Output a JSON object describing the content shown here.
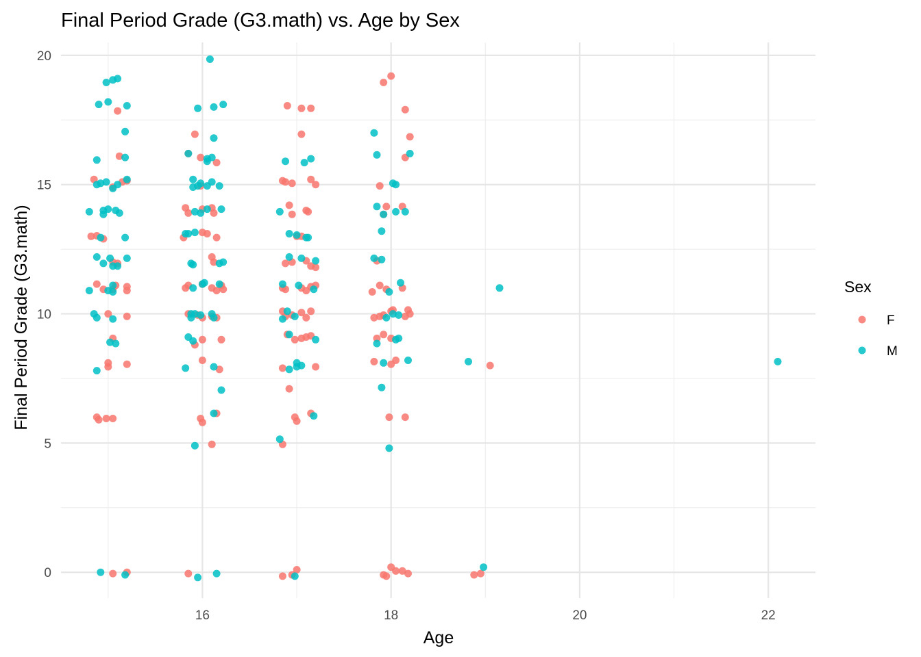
{
  "chart_data": {
    "type": "scatter",
    "title": "Final Period Grade (G3.math) vs. Age by Sex",
    "xlabel": "Age",
    "ylabel": "Final Period Grade (G3.math)",
    "xlim": [
      14.5,
      22.5
    ],
    "ylim": [
      -1,
      20.5
    ],
    "x_ticks": [
      16,
      18,
      20,
      22
    ],
    "y_ticks": [
      0,
      5,
      10,
      15,
      20
    ],
    "grid": true,
    "legend": {
      "title": "Sex",
      "placement": "right",
      "entries": [
        {
          "label": "F",
          "color": "#F8766D"
        },
        {
          "label": "M",
          "color": "#00BFC4"
        }
      ]
    },
    "series": [
      {
        "name": "F",
        "color": "#F8766D",
        "points": [
          [
            15.1,
            17.85
          ],
          [
            15.12,
            16.1
          ],
          [
            14.85,
            15.2
          ],
          [
            15.15,
            15.1
          ],
          [
            15.2,
            15.15
          ],
          [
            15.05,
            14.9
          ],
          [
            14.82,
            13.0
          ],
          [
            14.88,
            13.02
          ],
          [
            14.95,
            12.9
          ],
          [
            15.05,
            12.0
          ],
          [
            15.1,
            11.95
          ],
          [
            14.88,
            11.15
          ],
          [
            14.95,
            10.95
          ],
          [
            15.08,
            11.1
          ],
          [
            15.2,
            11.05
          ],
          [
            15.05,
            10.95
          ],
          [
            15.2,
            10.9
          ],
          [
            15.0,
            10.0
          ],
          [
            15.2,
            9.9
          ],
          [
            15.05,
            9.05
          ],
          [
            15.0,
            8.1
          ],
          [
            15.0,
            7.95
          ],
          [
            15.2,
            8.05
          ],
          [
            14.88,
            6.0
          ],
          [
            14.9,
            5.9
          ],
          [
            14.98,
            5.95
          ],
          [
            15.05,
            5.95
          ],
          [
            15.05,
            -0.05
          ],
          [
            15.2,
            0.0
          ],
          [
            15.92,
            16.95
          ],
          [
            15.85,
            16.2
          ],
          [
            15.98,
            16.05
          ],
          [
            16.15,
            15.85
          ],
          [
            15.98,
            14.95
          ],
          [
            15.82,
            14.1
          ],
          [
            15.85,
            13.9
          ],
          [
            16.0,
            14.05
          ],
          [
            16.1,
            14.1
          ],
          [
            16.12,
            13.9
          ],
          [
            16.0,
            13.15
          ],
          [
            16.05,
            13.1
          ],
          [
            15.8,
            12.95
          ],
          [
            16.15,
            12.95
          ],
          [
            16.1,
            12.2
          ],
          [
            16.12,
            12.0
          ],
          [
            15.82,
            11.0
          ],
          [
            15.85,
            11.1
          ],
          [
            16.0,
            11.15
          ],
          [
            16.1,
            11.0
          ],
          [
            16.15,
            10.9
          ],
          [
            16.2,
            11.1
          ],
          [
            16.22,
            10.95
          ],
          [
            15.85,
            10.0
          ],
          [
            15.95,
            9.95
          ],
          [
            16.0,
            9.85
          ],
          [
            16.1,
            9.9
          ],
          [
            16.15,
            9.85
          ],
          [
            16.0,
            9.0
          ],
          [
            15.92,
            8.8
          ],
          [
            16.2,
            9.0
          ],
          [
            16.0,
            8.2
          ],
          [
            16.18,
            7.85
          ],
          [
            16.15,
            6.15
          ],
          [
            15.98,
            5.95
          ],
          [
            16.0,
            5.8
          ],
          [
            16.1,
            4.95
          ],
          [
            15.85,
            -0.05
          ],
          [
            16.9,
            18.05
          ],
          [
            17.05,
            17.95
          ],
          [
            17.15,
            17.95
          ],
          [
            17.05,
            16.95
          ],
          [
            16.85,
            15.15
          ],
          [
            16.88,
            15.1
          ],
          [
            16.95,
            15.05
          ],
          [
            17.15,
            15.2
          ],
          [
            17.2,
            15.0
          ],
          [
            16.92,
            14.2
          ],
          [
            16.95,
            13.85
          ],
          [
            17.1,
            14.0
          ],
          [
            17.12,
            13.95
          ],
          [
            17.0,
            13.0
          ],
          [
            17.05,
            13.0
          ],
          [
            16.88,
            11.95
          ],
          [
            16.95,
            12.0
          ],
          [
            17.1,
            12.05
          ],
          [
            17.15,
            11.85
          ],
          [
            17.2,
            11.8
          ],
          [
            16.85,
            11.0
          ],
          [
            16.88,
            10.95
          ],
          [
            17.05,
            11.0
          ],
          [
            17.1,
            10.9
          ],
          [
            17.15,
            11.05
          ],
          [
            17.2,
            11.1
          ],
          [
            16.85,
            10.1
          ],
          [
            16.88,
            9.9
          ],
          [
            16.95,
            9.95
          ],
          [
            17.05,
            10.05
          ],
          [
            17.1,
            9.85
          ],
          [
            17.15,
            10.1
          ],
          [
            16.9,
            9.2
          ],
          [
            16.98,
            9.0
          ],
          [
            17.05,
            9.05
          ],
          [
            17.1,
            9.1
          ],
          [
            17.15,
            9.15
          ],
          [
            16.85,
            7.9
          ],
          [
            17.2,
            7.95
          ],
          [
            16.92,
            7.1
          ],
          [
            16.98,
            6.0
          ],
          [
            17.0,
            5.85
          ],
          [
            17.15,
            6.15
          ],
          [
            16.85,
            4.95
          ],
          [
            16.85,
            -0.15
          ],
          [
            16.95,
            -0.1
          ],
          [
            17.0,
            0.1
          ],
          [
            18.0,
            19.2
          ],
          [
            17.92,
            18.95
          ],
          [
            18.15,
            17.9
          ],
          [
            18.2,
            16.85
          ],
          [
            18.15,
            16.05
          ],
          [
            17.88,
            14.95
          ],
          [
            17.92,
            13.85
          ],
          [
            17.95,
            14.15
          ],
          [
            18.12,
            14.15
          ],
          [
            17.85,
            12.05
          ],
          [
            17.8,
            10.85
          ],
          [
            17.88,
            11.1
          ],
          [
            17.95,
            10.95
          ],
          [
            18.12,
            11.0
          ],
          [
            17.82,
            9.85
          ],
          [
            17.88,
            9.9
          ],
          [
            17.92,
            9.95
          ],
          [
            18.0,
            10.1
          ],
          [
            18.02,
            10.15
          ],
          [
            18.15,
            9.9
          ],
          [
            18.18,
            10.15
          ],
          [
            18.2,
            10.0
          ],
          [
            17.85,
            9.05
          ],
          [
            17.92,
            9.2
          ],
          [
            18.0,
            9.05
          ],
          [
            17.82,
            8.15
          ],
          [
            18.0,
            8.05
          ],
          [
            18.05,
            8.2
          ],
          [
            17.98,
            6.0
          ],
          [
            18.15,
            6.0
          ],
          [
            17.92,
            -0.1
          ],
          [
            17.95,
            -0.15
          ],
          [
            18.0,
            0.2
          ],
          [
            18.05,
            0.05
          ],
          [
            18.12,
            0.05
          ],
          [
            18.18,
            -0.05
          ],
          [
            19.05,
            8.0
          ],
          [
            18.88,
            -0.1
          ],
          [
            18.95,
            -0.05
          ]
        ]
      },
      {
        "name": "M",
        "color": "#00BFC4",
        "points": [
          [
            15.1,
            19.1
          ],
          [
            15.05,
            19.05
          ],
          [
            14.98,
            18.95
          ],
          [
            15.0,
            18.2
          ],
          [
            14.9,
            18.1
          ],
          [
            15.2,
            18.05
          ],
          [
            15.18,
            17.05
          ],
          [
            14.88,
            15.95
          ],
          [
            15.18,
            16.05
          ],
          [
            14.88,
            15.0
          ],
          [
            14.92,
            15.05
          ],
          [
            14.98,
            15.1
          ],
          [
            15.05,
            14.85
          ],
          [
            15.1,
            15.0
          ],
          [
            15.2,
            15.2
          ],
          [
            14.8,
            13.95
          ],
          [
            14.95,
            14.0
          ],
          [
            15.0,
            14.05
          ],
          [
            15.08,
            14.0
          ],
          [
            15.12,
            13.9
          ],
          [
            14.95,
            13.85
          ],
          [
            14.92,
            12.95
          ],
          [
            15.18,
            12.95
          ],
          [
            14.88,
            12.2
          ],
          [
            14.95,
            11.95
          ],
          [
            15.02,
            12.15
          ],
          [
            15.05,
            11.85
          ],
          [
            15.1,
            11.85
          ],
          [
            15.2,
            12.15
          ],
          [
            14.8,
            10.9
          ],
          [
            15.0,
            10.9
          ],
          [
            15.05,
            10.85
          ],
          [
            15.05,
            11.1
          ],
          [
            14.85,
            10.0
          ],
          [
            14.88,
            9.85
          ],
          [
            15.05,
            9.8
          ],
          [
            15.02,
            8.9
          ],
          [
            15.08,
            8.85
          ],
          [
            14.88,
            7.8
          ],
          [
            14.92,
            0.0
          ],
          [
            15.18,
            -0.1
          ],
          [
            16.08,
            19.85
          ],
          [
            15.95,
            17.95
          ],
          [
            16.12,
            18.0
          ],
          [
            16.22,
            18.1
          ],
          [
            16.12,
            16.8
          ],
          [
            15.85,
            16.2
          ],
          [
            16.05,
            16.0
          ],
          [
            16.1,
            16.05
          ],
          [
            16.05,
            15.9
          ],
          [
            15.9,
            15.2
          ],
          [
            15.9,
            14.9
          ],
          [
            15.95,
            14.95
          ],
          [
            15.98,
            15.05
          ],
          [
            16.05,
            14.95
          ],
          [
            16.1,
            15.1
          ],
          [
            16.18,
            14.95
          ],
          [
            15.92,
            13.95
          ],
          [
            15.98,
            13.9
          ],
          [
            16.05,
            14.05
          ],
          [
            16.2,
            14.05
          ],
          [
            15.82,
            13.1
          ],
          [
            15.85,
            13.1
          ],
          [
            15.92,
            13.15
          ],
          [
            15.88,
            11.95
          ],
          [
            15.9,
            11.9
          ],
          [
            16.02,
            11.2
          ],
          [
            16.18,
            11.15
          ],
          [
            16.22,
            12.0
          ],
          [
            16.18,
            11.95
          ],
          [
            15.9,
            11.0
          ],
          [
            16.0,
            11.15
          ],
          [
            15.88,
            10.0
          ],
          [
            15.92,
            10.0
          ],
          [
            15.98,
            9.95
          ],
          [
            16.1,
            10.0
          ],
          [
            16.12,
            9.85
          ],
          [
            15.88,
            9.85
          ],
          [
            15.85,
            9.1
          ],
          [
            15.9,
            8.95
          ],
          [
            15.82,
            7.9
          ],
          [
            16.12,
            7.95
          ],
          [
            16.2,
            7.05
          ],
          [
            16.12,
            6.15
          ],
          [
            15.92,
            4.9
          ],
          [
            15.95,
            -0.2
          ],
          [
            16.15,
            -0.05
          ],
          [
            16.88,
            15.9
          ],
          [
            17.15,
            16.0
          ],
          [
            17.08,
            15.85
          ],
          [
            16.82,
            13.95
          ],
          [
            16.92,
            13.1
          ],
          [
            17.0,
            13.05
          ],
          [
            17.1,
            12.95
          ],
          [
            17.12,
            12.95
          ],
          [
            16.92,
            12.2
          ],
          [
            17.05,
            12.15
          ],
          [
            17.2,
            12.05
          ],
          [
            16.85,
            11.15
          ],
          [
            17.02,
            11.1
          ],
          [
            17.18,
            10.95
          ],
          [
            16.9,
            10.1
          ],
          [
            16.98,
            9.9
          ],
          [
            16.85,
            9.8
          ],
          [
            16.92,
            9.2
          ],
          [
            17.2,
            9.0
          ],
          [
            17.0,
            8.1
          ],
          [
            17.05,
            8.0
          ],
          [
            17.0,
            7.95
          ],
          [
            16.92,
            7.85
          ],
          [
            17.18,
            6.05
          ],
          [
            16.82,
            5.15
          ],
          [
            16.98,
            -0.15
          ],
          [
            17.82,
            17.0
          ],
          [
            17.85,
            16.15
          ],
          [
            18.2,
            16.2
          ],
          [
            18.02,
            15.05
          ],
          [
            18.05,
            15.0
          ],
          [
            17.85,
            14.15
          ],
          [
            18.05,
            13.95
          ],
          [
            18.15,
            13.95
          ],
          [
            17.92,
            13.85
          ],
          [
            17.9,
            13.2
          ],
          [
            17.82,
            12.15
          ],
          [
            17.9,
            12.1
          ],
          [
            18.1,
            11.2
          ],
          [
            17.98,
            10.85
          ],
          [
            18.02,
            10.0
          ],
          [
            18.08,
            9.95
          ],
          [
            17.95,
            9.85
          ],
          [
            18.05,
            9.0
          ],
          [
            18.08,
            9.05
          ],
          [
            17.85,
            8.85
          ],
          [
            17.92,
            8.1
          ],
          [
            18.18,
            8.2
          ],
          [
            17.9,
            7.15
          ],
          [
            17.98,
            4.8
          ],
          [
            18.82,
            8.15
          ],
          [
            18.98,
            0.2
          ],
          [
            19.15,
            11.0
          ],
          [
            22.1,
            8.15
          ]
        ]
      }
    ]
  }
}
